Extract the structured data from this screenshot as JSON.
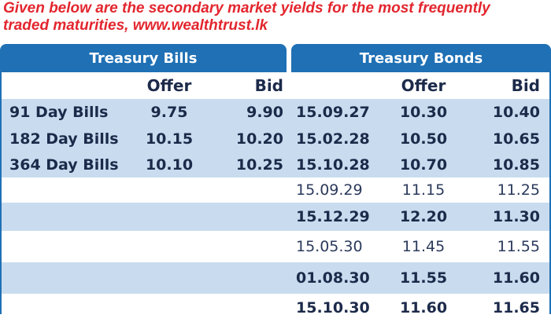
{
  "caption": {
    "line1": "Given below are the secondary market yields for the most frequently",
    "line2": "traded maturities, www.wealthtrust.lk"
  },
  "tabs": {
    "bills": "Treasury Bills",
    "bonds": "Treasury Bonds"
  },
  "headers": {
    "bills_offer": "Offer",
    "bills_bid": "Bid",
    "bonds_offer": "Offer",
    "bonds_bid": "Bid"
  },
  "rows": [
    {
      "bill": "91 Day Bills",
      "bill_offer": "9.75",
      "bill_bid": "9.90",
      "maturity": "15.09.27",
      "bond_offer": "10.30",
      "bond_bid": "10.40"
    },
    {
      "bill": "182 Day Bills",
      "bill_offer": "10.15",
      "bill_bid": "10.20",
      "maturity": "15.02.28",
      "bond_offer": "10.50",
      "bond_bid": "10.65"
    },
    {
      "bill": "364 Day Bills",
      "bill_offer": "10.10",
      "bill_bid": "10.25",
      "maturity": "15.10.28",
      "bond_offer": "10.70",
      "bond_bid": "10.85"
    },
    {
      "bill": "",
      "bill_offer": "",
      "bill_bid": "",
      "maturity": "15.09.29",
      "bond_offer": "11.15",
      "bond_bid": "11.25"
    },
    {
      "bill": "",
      "bill_offer": "",
      "bill_bid": "",
      "maturity": "15.12.29",
      "bond_offer": "12.20",
      "bond_bid": "11.30"
    },
    {
      "bill": "",
      "bill_offer": "",
      "bill_bid": "",
      "maturity": "15.05.30",
      "bond_offer": "11.45",
      "bond_bid": "11.55"
    },
    {
      "bill": "",
      "bill_offer": "",
      "bill_bid": "",
      "maturity": "01.08.30",
      "bond_offer": "11.55",
      "bond_bid": "11.60"
    },
    {
      "bill": "",
      "bill_offer": "",
      "bill_bid": "",
      "maturity": "15.10.30",
      "bond_offer": "11.60",
      "bond_bid": "11.65"
    }
  ],
  "colors": {
    "caption": "#e3262e",
    "tab": "#1f70b5",
    "shade": "#c9dcef",
    "text": "#1c2a4a"
  }
}
